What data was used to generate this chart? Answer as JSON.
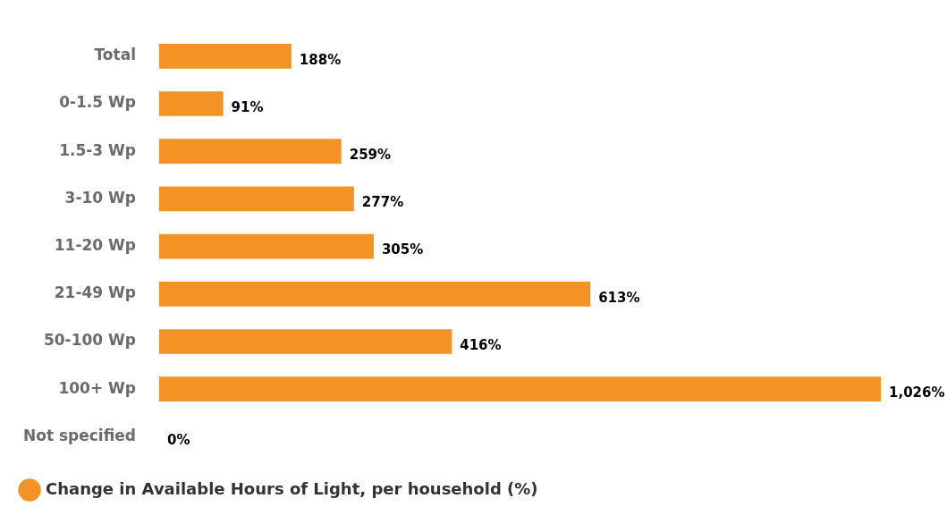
{
  "chart_data": {
    "type": "bar",
    "orientation": "horizontal",
    "categories": [
      "Total",
      "0-1.5 Wp",
      "1.5-3 Wp",
      "3-10 Wp",
      "11-20 Wp",
      "21-49 Wp",
      "50-100 Wp",
      "100+ Wp",
      "Not specified"
    ],
    "series": [
      {
        "name": "Change in Available Hours of Light, per household (%)",
        "color": "#f39325",
        "values": [
          188,
          91,
          259,
          277,
          305,
          613,
          416,
          1026,
          0
        ],
        "value_labels": [
          "188%",
          "91%",
          "259%",
          "277%",
          "305%",
          "613%",
          "416%",
          "1,026%",
          "0%"
        ]
      }
    ],
    "legend": "bottom left"
  }
}
